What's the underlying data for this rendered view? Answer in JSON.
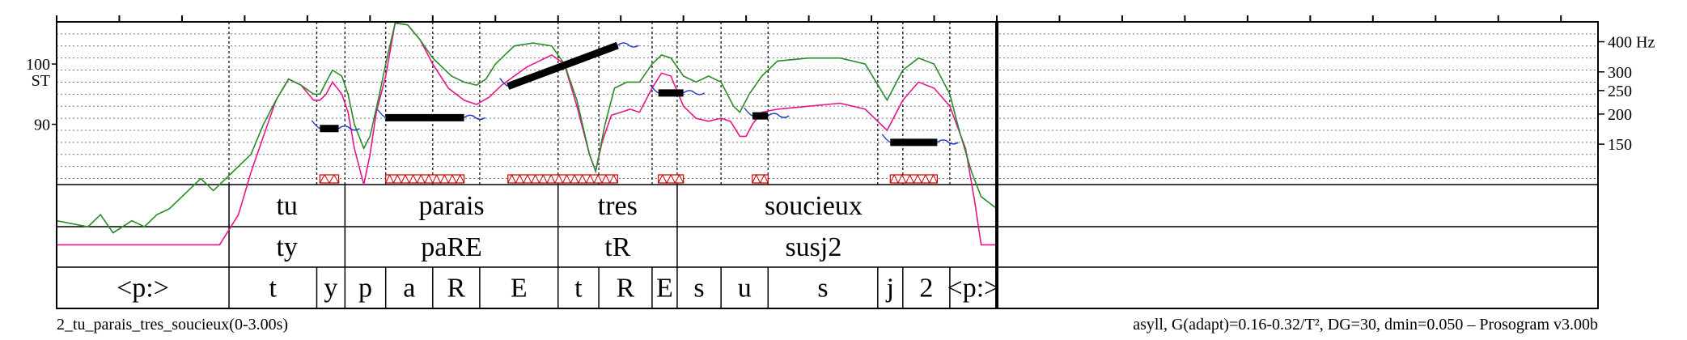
{
  "chart_data": {
    "type": "line",
    "y_axis_left": {
      "unit": "ST",
      "ticks": [
        {
          "label": "100",
          "value": 100
        },
        {
          "label": "90",
          "value": 90
        }
      ]
    },
    "y_axis_right": {
      "unit": "Hz",
      "ticks": [
        {
          "label": "400",
          "st": 103.7
        },
        {
          "label": "300",
          "st": 98.7
        },
        {
          "label": "250",
          "st": 95.6
        },
        {
          "label": "200",
          "st": 91.7
        },
        {
          "label": "150",
          "st": 86.7
        }
      ]
    },
    "ylim_st": [
      80,
      107
    ],
    "xlim_s": [
      0,
      3.0
    ],
    "grid": true,
    "tiers": {
      "words": [
        {
          "label": "tu",
          "start": 0.55,
          "end": 0.92
        },
        {
          "label": "parais",
          "start": 0.92,
          "end": 1.6
        },
        {
          "label": "tres",
          "start": 1.6,
          "end": 1.98
        },
        {
          "label": "soucieux",
          "start": 1.98,
          "end": 2.85
        }
      ],
      "syllables": [
        {
          "label": "ty",
          "start": 0.55,
          "end": 0.92
        },
        {
          "label": "paRE",
          "start": 0.92,
          "end": 1.6
        },
        {
          "label": "tR",
          "start": 1.6,
          "end": 1.98
        },
        {
          "label": "susj2",
          "start": 1.98,
          "end": 2.85
        }
      ],
      "phones": [
        {
          "label": "<p:>",
          "start": 0.0,
          "end": 0.55
        },
        {
          "label": "t",
          "start": 0.55,
          "end": 0.83
        },
        {
          "label": "y",
          "start": 0.83,
          "end": 0.92
        },
        {
          "label": "p",
          "start": 0.92,
          "end": 1.05
        },
        {
          "label": "a",
          "start": 1.05,
          "end": 1.2
        },
        {
          "label": "R",
          "start": 1.2,
          "end": 1.35
        },
        {
          "label": "E",
          "start": 1.35,
          "end": 1.6
        },
        {
          "label": "t",
          "start": 1.6,
          "end": 1.73
        },
        {
          "label": "R",
          "start": 1.73,
          "end": 1.9
        },
        {
          "label": "E",
          "start": 1.9,
          "end": 1.98
        },
        {
          "label": "s",
          "start": 1.98,
          "end": 2.12
        },
        {
          "label": "u",
          "start": 2.12,
          "end": 2.27
        },
        {
          "label": "s",
          "start": 2.27,
          "end": 2.62
        },
        {
          "label": "j",
          "start": 2.62,
          "end": 2.7
        },
        {
          "label": "2",
          "start": 2.7,
          "end": 2.85
        },
        {
          "label": "<p:>",
          "start": 2.85,
          "end": 3.0
        }
      ]
    },
    "stylized_nuclei": [
      {
        "start": 0.84,
        "end": 0.9,
        "st_start": 89.3,
        "st_end": 89.3
      },
      {
        "start": 1.05,
        "end": 1.3,
        "st_start": 91.1,
        "st_end": 91.1
      },
      {
        "start": 1.44,
        "end": 1.79,
        "st_start": 96.3,
        "st_end": 103.1
      },
      {
        "start": 1.92,
        "end": 2.0,
        "st_start": 95.2,
        "st_end": 95.2
      },
      {
        "start": 2.22,
        "end": 2.27,
        "st_start": 91.4,
        "st_end": 91.4
      },
      {
        "start": 2.66,
        "end": 2.81,
        "st_start": 87.0,
        "st_end": 87.0
      }
    ],
    "series": [
      {
        "color": "#e8158c",
        "points": [
          [
            0.0,
            70
          ],
          [
            0.28,
            70
          ],
          [
            0.34,
            70
          ],
          [
            0.4,
            70
          ],
          [
            0.46,
            70
          ],
          [
            0.52,
            70
          ],
          [
            0.58,
            75
          ],
          [
            0.62,
            82
          ],
          [
            0.66,
            88
          ],
          [
            0.7,
            94
          ],
          [
            0.74,
            97.5
          ],
          [
            0.78,
            96.5
          ],
          [
            0.82,
            94
          ],
          [
            0.84,
            94
          ],
          [
            0.86,
            95
          ],
          [
            0.88,
            97
          ],
          [
            0.91,
            95
          ],
          [
            0.93,
            92
          ],
          [
            0.95,
            86
          ],
          [
            0.98,
            80
          ],
          [
            1.0,
            85
          ],
          [
            1.02,
            92
          ],
          [
            1.05,
            98
          ],
          [
            1.08,
            106.8
          ],
          [
            1.12,
            106.5
          ],
          [
            1.16,
            104
          ],
          [
            1.2,
            100
          ],
          [
            1.25,
            96
          ],
          [
            1.3,
            94
          ],
          [
            1.34,
            93.3
          ],
          [
            1.38,
            94.5
          ],
          [
            1.42,
            96.5
          ],
          [
            1.5,
            99.5
          ],
          [
            1.58,
            101.5
          ],
          [
            1.62,
            100
          ],
          [
            1.66,
            93
          ],
          [
            1.7,
            85
          ],
          [
            1.72,
            82.2
          ],
          [
            1.74,
            87
          ],
          [
            1.77,
            91.5
          ],
          [
            1.8,
            92
          ],
          [
            1.83,
            92.5
          ],
          [
            1.86,
            92
          ],
          [
            1.9,
            96
          ],
          [
            1.93,
            98.5
          ],
          [
            1.96,
            98
          ],
          [
            2.0,
            93
          ],
          [
            2.04,
            91
          ],
          [
            2.08,
            90.5
          ],
          [
            2.12,
            91
          ],
          [
            2.15,
            90.5
          ],
          [
            2.18,
            88
          ],
          [
            2.2,
            88
          ],
          [
            2.22,
            90
          ],
          [
            2.25,
            92
          ],
          [
            2.3,
            92.5
          ],
          [
            2.4,
            93
          ],
          [
            2.5,
            93.5
          ],
          [
            2.58,
            92.5
          ],
          [
            2.65,
            89
          ],
          [
            2.7,
            94
          ],
          [
            2.75,
            97
          ],
          [
            2.8,
            96
          ],
          [
            2.85,
            93
          ],
          [
            2.9,
            86
          ],
          [
            2.93,
            77
          ],
          [
            2.95,
            70
          ],
          [
            3.0,
            70
          ]
        ]
      },
      {
        "color": "#2a8a2a",
        "points": [
          [
            0.0,
            74
          ],
          [
            0.1,
            73
          ],
          [
            0.14,
            75
          ],
          [
            0.18,
            72
          ],
          [
            0.24,
            74
          ],
          [
            0.28,
            73
          ],
          [
            0.32,
            75
          ],
          [
            0.36,
            76
          ],
          [
            0.4,
            78
          ],
          [
            0.46,
            81
          ],
          [
            0.5,
            79
          ],
          [
            0.56,
            82
          ],
          [
            0.62,
            85
          ],
          [
            0.66,
            90
          ],
          [
            0.7,
            94
          ],
          [
            0.74,
            97.5
          ],
          [
            0.78,
            96.5
          ],
          [
            0.82,
            95
          ],
          [
            0.84,
            95
          ],
          [
            0.86,
            97
          ],
          [
            0.88,
            99
          ],
          [
            0.91,
            98
          ],
          [
            0.93,
            95
          ],
          [
            0.95,
            90
          ],
          [
            0.98,
            86
          ],
          [
            1.0,
            88
          ],
          [
            1.03,
            95
          ],
          [
            1.05,
            100
          ],
          [
            1.08,
            106.8
          ],
          [
            1.12,
            106.5
          ],
          [
            1.16,
            104
          ],
          [
            1.2,
            101
          ],
          [
            1.26,
            98
          ],
          [
            1.3,
            97
          ],
          [
            1.34,
            96.5
          ],
          [
            1.37,
            97.5
          ],
          [
            1.4,
            100
          ],
          [
            1.46,
            103
          ],
          [
            1.52,
            103.5
          ],
          [
            1.58,
            103
          ],
          [
            1.62,
            100
          ],
          [
            1.66,
            94
          ],
          [
            1.7,
            85
          ],
          [
            1.72,
            82.2
          ],
          [
            1.75,
            90
          ],
          [
            1.78,
            96
          ],
          [
            1.82,
            97
          ],
          [
            1.86,
            97
          ],
          [
            1.9,
            100
          ],
          [
            1.93,
            101.5
          ],
          [
            1.96,
            101
          ],
          [
            2.0,
            98
          ],
          [
            2.04,
            97
          ],
          [
            2.08,
            98
          ],
          [
            2.12,
            97
          ],
          [
            2.16,
            93
          ],
          [
            2.18,
            92
          ],
          [
            2.21,
            95
          ],
          [
            2.25,
            98
          ],
          [
            2.3,
            100.5
          ],
          [
            2.4,
            101
          ],
          [
            2.5,
            101
          ],
          [
            2.58,
            100
          ],
          [
            2.65,
            94
          ],
          [
            2.7,
            99
          ],
          [
            2.75,
            101
          ],
          [
            2.8,
            100
          ],
          [
            2.85,
            95
          ],
          [
            2.88,
            89
          ],
          [
            2.92,
            82
          ],
          [
            2.95,
            78
          ],
          [
            3.0,
            76
          ]
        ]
      }
    ]
  },
  "footer": {
    "left": "2_tu_parais_tres_soucieux(0-3.00s)",
    "right": "asyll, G(adapt)=0.16-0.32/T², DG=30, dmin=0.050 – Prosogram v3.00b"
  }
}
